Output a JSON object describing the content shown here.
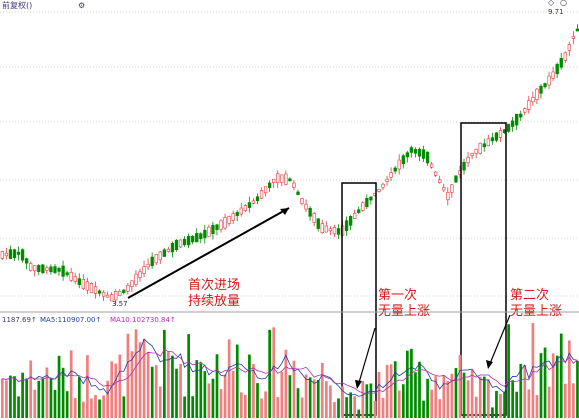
{
  "header": {
    "title": "前复权()",
    "icon": "settings-icon"
  },
  "top_right_controls": [
    "◇",
    "○"
  ],
  "price_tags": {
    "high": "9.71",
    "low": "3.57"
  },
  "annotations": {
    "first_entry": [
      "首次进场",
      "持续放量"
    ],
    "first_no_volume": [
      "第一次",
      "无量上涨"
    ],
    "second_no_volume": [
      "第二次",
      "无量上涨"
    ]
  },
  "volume_header": {
    "vol": "1187.69↑",
    "ma5": "MA5:110907.00↑",
    "ma10": "MA10:102730.84↑",
    "ma5_color": "#1f3f9f",
    "ma10_color": "#b02fb0"
  },
  "colors": {
    "up": "#e8383d",
    "down": "#008a00",
    "volume_up": "#f08080",
    "grid": "#d0d0d0",
    "box": "#000000",
    "arrow": "#000000"
  },
  "chart_data": {
    "type": "candlestick",
    "panels": [
      "price",
      "volume"
    ],
    "price_range_visible": [
      "3.57",
      "9.71"
    ],
    "notes": "Daily candlestick price chart with volume bars; price rises from ~3.57 low to ~9.71 high.",
    "trend_shape": [
      {
        "segment": "start",
        "price": 4.7
      },
      {
        "segment": "dip",
        "price": 3.6
      },
      {
        "segment": "first_rise",
        "price": 6.2
      },
      {
        "segment": "pullback",
        "price": 5.2
      },
      {
        "segment": "second_rise",
        "price": 6.8
      },
      {
        "segment": "consolidation",
        "price": 6.0
      },
      {
        "segment": "third_rise",
        "price": 7.2
      },
      {
        "segment": "final_rise",
        "price": 9.7
      }
    ]
  }
}
